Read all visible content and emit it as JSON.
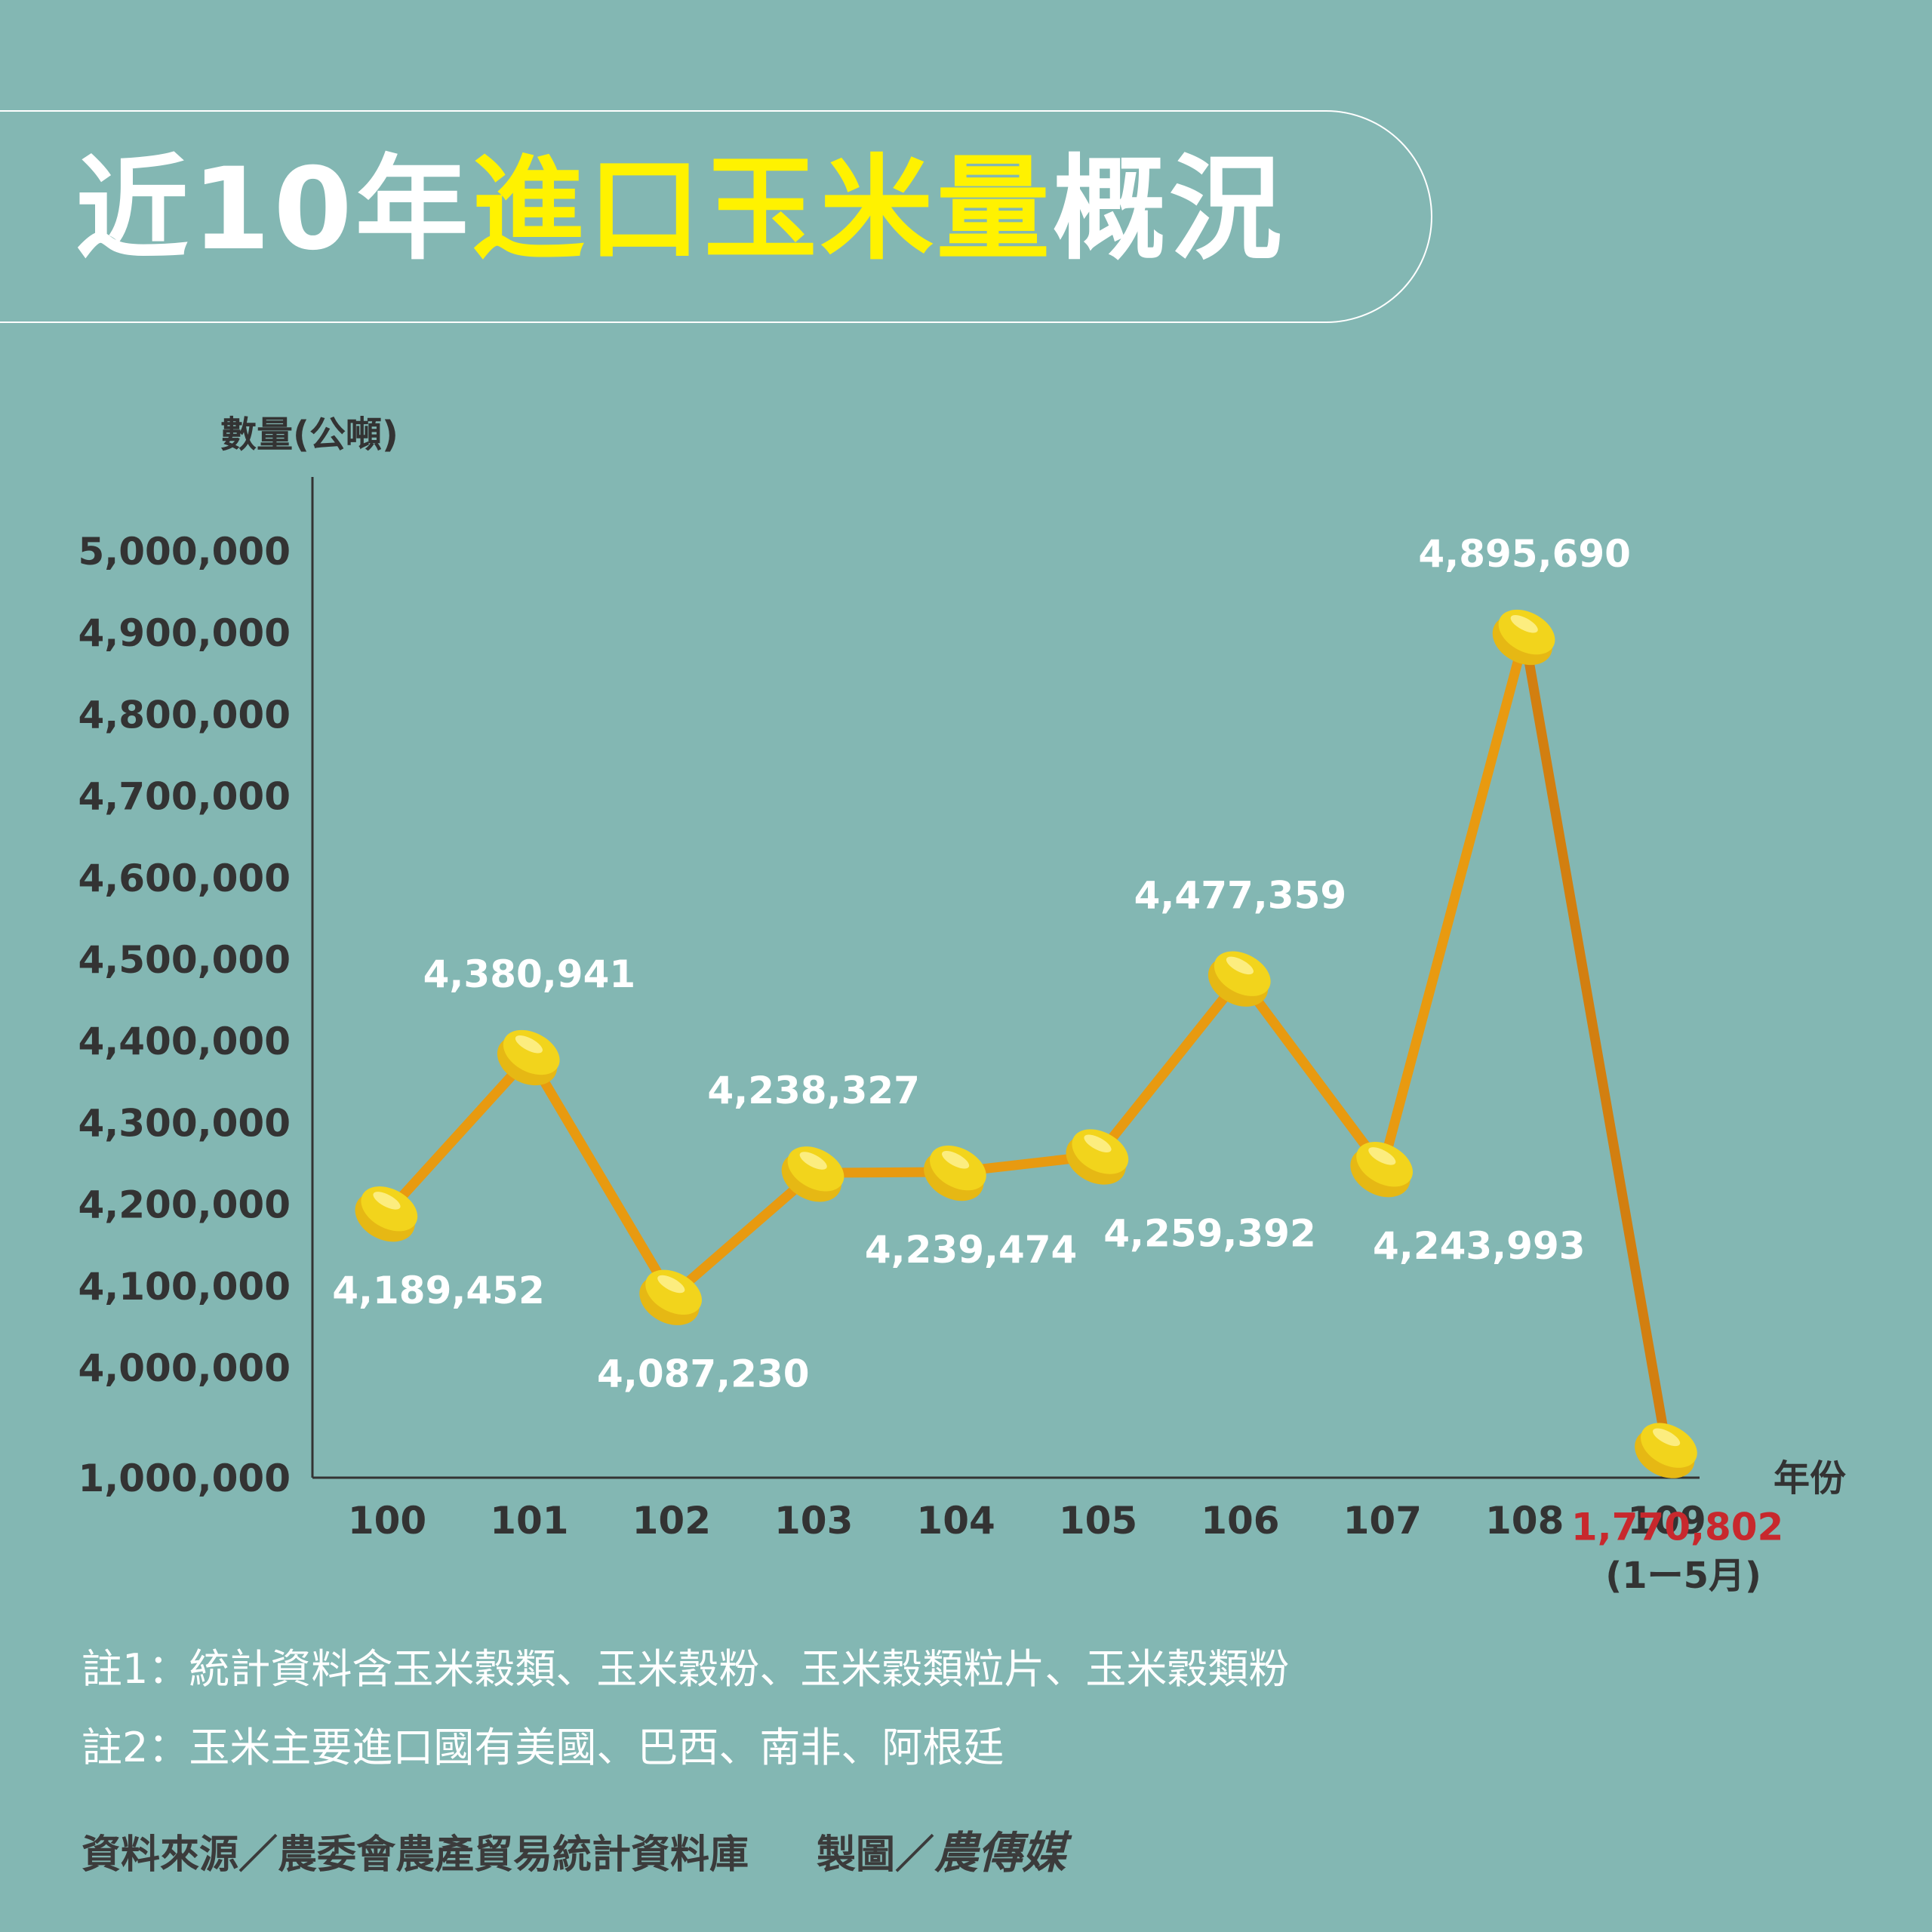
{
  "title": {
    "prefix": "近10年",
    "highlight": "進口玉米量",
    "suffix": "概況"
  },
  "colors": {
    "background": "#83b7b3",
    "title_highlight": "#fff200",
    "line": "#e89a10",
    "line_dark": "#d27f10",
    "marker": "#f2d41c",
    "label": "#ffffff",
    "label_highlight": "#c8282d",
    "axis_text": "#333333"
  },
  "chart_data": {
    "type": "line",
    "ylabel": "數量(公噸)",
    "xlabel": "年份",
    "categories": [
      "100",
      "101",
      "102",
      "103",
      "104",
      "105",
      "106",
      "107",
      "108",
      "109"
    ],
    "category_sublabels": [
      "",
      "",
      "",
      "",
      "",
      "",
      "",
      "",
      "",
      "(1ー5月)"
    ],
    "values": [
      4189452,
      4380941,
      4087230,
      4238327,
      4239474,
      4259392,
      4477359,
      4243993,
      4895690,
      1770802
    ],
    "data_labels": [
      "4,189,452",
      "4,380,941",
      "4,087,230",
      "4,238,327",
      "4,239,474",
      "4,259,392",
      "4,477,359",
      "4,243,993",
      "4,895,690",
      "1,770,802"
    ],
    "label_positions": [
      "below",
      "above",
      "below",
      "above",
      "below",
      "below",
      "above",
      "below",
      "above",
      "below"
    ],
    "highlight_index": 9,
    "y_ticks": [
      1000000,
      4000000,
      4100000,
      4200000,
      4300000,
      4400000,
      4500000,
      4600000,
      4700000,
      4800000,
      4900000,
      5000000
    ],
    "y_tick_labels": [
      "1,000,000",
      "4,000,000",
      "4,100,000",
      "4,200,000",
      "4,300,000",
      "4,400,000",
      "4,500,000",
      "4,600,000",
      "4,700,000",
      "4,800,000",
      "4,900,000",
      "5,000,000"
    ],
    "ylim": [
      1000000,
      5000000
    ],
    "axis_break": [
      1000000,
      4000000
    ],
    "grid": false,
    "marker": "corn-kernel-icon"
  },
  "notes": [
    "註1：統計資料含玉米穀類、玉米穀粉、玉米穀類粒片、玉米穀類粉",
    "註2：玉米主要進口國有美國、巴西、南非、阿根廷"
  ],
  "footer": {
    "source": "資料來源／農委會農產貿易統計資料庫",
    "credit_label": "製圖／",
    "credit_logo": "農傳媒"
  }
}
